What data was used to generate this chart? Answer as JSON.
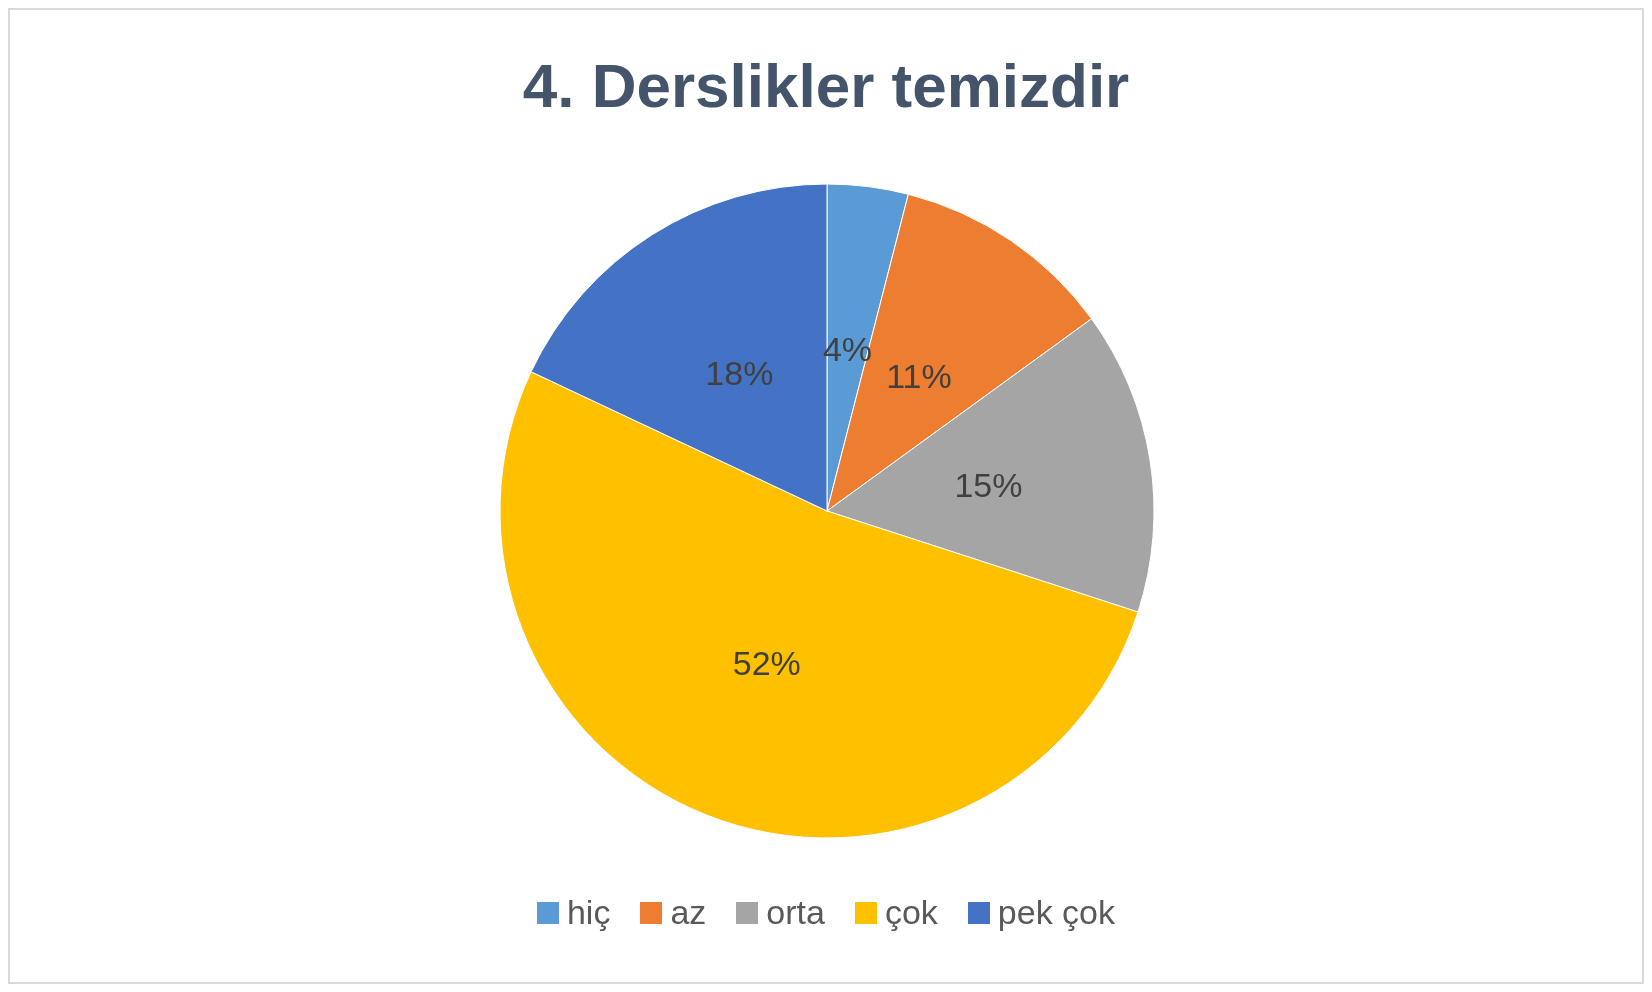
{
  "chart_data": {
    "type": "pie",
    "title": "4. Derslikler temizdir",
    "categories": [
      "hiç",
      "az",
      "orta",
      "çok",
      "pek çok"
    ],
    "values": [
      4,
      11,
      15,
      52,
      18
    ],
    "value_labels": [
      "4%",
      "11%",
      "15%",
      "52%",
      "18%"
    ],
    "colors": [
      "#5b9bd5",
      "#ed7d31",
      "#a5a5a5",
      "#ffc000",
      "#4472c4"
    ],
    "legend": "bottom"
  }
}
